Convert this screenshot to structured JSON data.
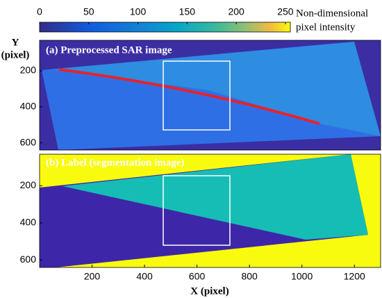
{
  "chart_data": [
    {
      "type": "image",
      "title": "(a) Preprocessed SAR image",
      "ylabel": [
        "Y",
        "(pixel)"
      ],
      "xlim": [
        0,
        1300
      ],
      "ylim": [
        30,
        640
      ],
      "yticks": [
        200,
        400,
        600
      ],
      "colorbar": {
        "label": [
          "Non-dimensional",
          "pixel intensity"
        ],
        "lim": [
          0,
          255
        ],
        "ticks": [
          0,
          50,
          100,
          150,
          200,
          250
        ]
      }
    },
    {
      "type": "image",
      "title": "(b) Label (segmentation image)",
      "xlabel": "X (pixel)",
      "xlim": [
        0,
        1300
      ],
      "xticks": [
        200,
        400,
        600,
        800,
        1000,
        1200
      ],
      "ylim": [
        30,
        640
      ],
      "yticks": [
        200,
        400,
        600
      ]
    }
  ]
}
